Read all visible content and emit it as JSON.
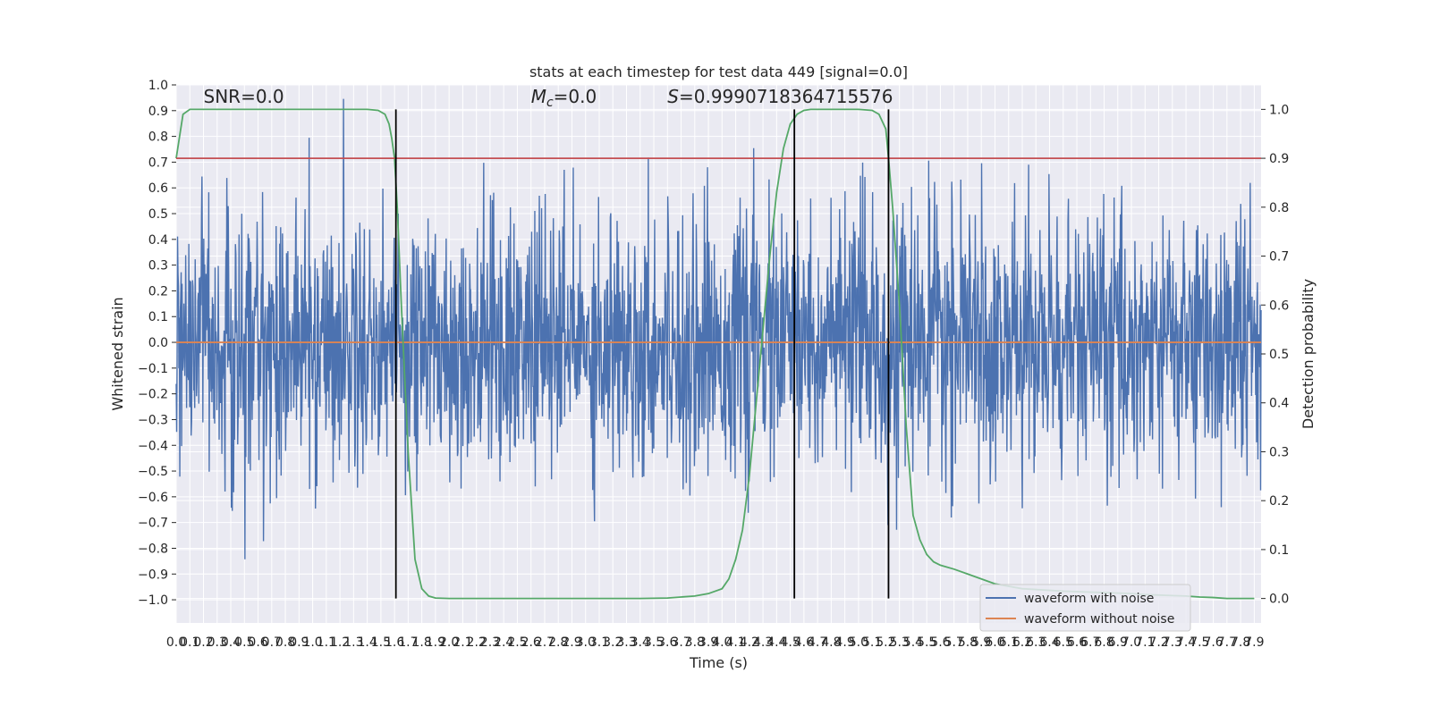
{
  "chart_data": {
    "type": "line",
    "title": "stats at each timestep for test data 449 [signal=0.0]",
    "xlabel": "Time (s)",
    "ylabel": "Whitened strain",
    "y2label": "Detection probability",
    "xlim": [
      0.0,
      7.95
    ],
    "ylim": [
      -1.09,
      1.0
    ],
    "y2lim": [
      -0.05,
      1.05
    ],
    "x_ticks": [
      0.0,
      0.1,
      0.2,
      0.3,
      0.4,
      0.5,
      0.6,
      0.7,
      0.8,
      0.9,
      1.0,
      1.1,
      1.2,
      1.3,
      1.4,
      1.5,
      1.6,
      1.7,
      1.8,
      1.9,
      2.0,
      2.1,
      2.2,
      2.3,
      2.4,
      2.5,
      2.6,
      2.7,
      2.8,
      2.9,
      3.0,
      3.1,
      3.2,
      3.3,
      3.4,
      3.5,
      3.6,
      3.7,
      3.8,
      3.9,
      4.0,
      4.1,
      4.2,
      4.3,
      4.4,
      4.5,
      4.6,
      4.7,
      4.8,
      4.9,
      5.0,
      5.1,
      5.2,
      5.3,
      5.4,
      5.5,
      5.6,
      5.7,
      5.8,
      5.9,
      6.0,
      6.1,
      6.2,
      6.3,
      6.4,
      6.5,
      6.6,
      6.7,
      6.8,
      6.9,
      7.0,
      7.1,
      7.2,
      7.3,
      7.4,
      7.5,
      7.6,
      7.7,
      7.8,
      7.9
    ],
    "x_tick_labels": [
      "0.0",
      "0.1",
      "0.2",
      "0.3",
      "0.4",
      "0.5",
      "0.6",
      "0.7",
      "0.8",
      "0.9",
      "1.0",
      "1.1",
      "1.2",
      "1.3",
      "1.4",
      "1.5",
      "1.6",
      "1.7",
      "1.8",
      "1.9",
      "2.0",
      "2.1",
      "2.2",
      "2.3",
      "2.4",
      "2.5",
      "2.6",
      "2.7",
      "2.8",
      "2.9",
      "3.0",
      "3.1",
      "3.2",
      "3.3",
      "3.4",
      "3.5",
      "3.6",
      "3.7",
      "3.8",
      "3.9",
      "4.0",
      "4.1",
      "4.2",
      "4.3",
      "4.4",
      "4.5",
      "4.6",
      "4.7",
      "4.8",
      "4.9",
      "5.0",
      "5.1",
      "5.2",
      "5.3",
      "5.4",
      "5.5",
      "5.6",
      "5.7",
      "5.8",
      "5.9",
      "6.0",
      "6.1",
      "6.2",
      "6.3",
      "6.4",
      "6.5",
      "6.6",
      "6.7",
      "6.8",
      "6.9",
      "7.0",
      "7.1",
      "7.2",
      "7.3",
      "7.4",
      "7.5",
      "7.6",
      "7.7",
      "7.8",
      "7.9"
    ],
    "y_ticks": [
      -1.0,
      -0.9,
      -0.8,
      -0.7,
      -0.6,
      -0.5,
      -0.4,
      -0.3,
      -0.2,
      -0.1,
      0.0,
      0.1,
      0.2,
      0.3,
      0.4,
      0.5,
      0.6,
      0.7,
      0.8,
      0.9,
      1.0
    ],
    "y_tick_labels": [
      "−1.0",
      "−0.9",
      "−0.8",
      "−0.7",
      "−0.6",
      "−0.5",
      "−0.4",
      "−0.3",
      "−0.2",
      "−0.1",
      "0.0",
      "0.1",
      "0.2",
      "0.3",
      "0.4",
      "0.5",
      "0.6",
      "0.7",
      "0.8",
      "0.9",
      "1.0"
    ],
    "y2_ticks": [
      0.0,
      0.1,
      0.2,
      0.3,
      0.4,
      0.5,
      0.6,
      0.7,
      0.8,
      0.9,
      1.0
    ],
    "y2_tick_labels": [
      "0.0",
      "0.1",
      "0.2",
      "0.3",
      "0.4",
      "0.5",
      "0.6",
      "0.7",
      "0.8",
      "0.9",
      "1.0"
    ],
    "grid": true,
    "legend_position": "lower-right",
    "series": [
      {
        "name": "waveform with noise",
        "axis": "left",
        "color": "#4c72b0",
        "kind": "noise",
        "std": 0.25,
        "sample_count": 2400
      },
      {
        "name": "waveform without noise",
        "axis": "left",
        "color": "#dd8452",
        "x": [
          0.0,
          7.95
        ],
        "y": [
          0.0,
          0.0
        ]
      },
      {
        "name": "",
        "axis": "right",
        "color": "#55a868",
        "x": [
          0.0,
          0.05,
          0.1,
          0.2,
          0.5,
          1.0,
          1.4,
          1.48,
          1.53,
          1.56,
          1.58,
          1.6,
          1.62,
          1.65,
          1.7,
          1.75,
          1.8,
          1.85,
          1.9,
          2.0,
          2.5,
          3.0,
          3.4,
          3.6,
          3.8,
          3.9,
          4.0,
          4.05,
          4.1,
          4.15,
          4.2,
          4.25,
          4.3,
          4.35,
          4.4,
          4.45,
          4.5,
          4.55,
          4.6,
          4.65,
          4.7,
          4.8,
          4.9,
          5.0,
          5.1,
          5.15,
          5.2,
          5.22,
          5.25,
          5.3,
          5.35,
          5.4,
          5.45,
          5.5,
          5.55,
          5.6,
          5.7,
          5.8,
          5.9,
          6.0,
          6.2,
          6.5,
          6.8,
          7.0,
          7.1,
          7.2,
          7.3,
          7.4,
          7.5,
          7.6,
          7.7,
          7.8,
          7.9
        ],
        "y": [
          0.9,
          0.99,
          1.0,
          1.0,
          1.0,
          1.0,
          1.0,
          0.998,
          0.99,
          0.97,
          0.94,
          0.9,
          0.8,
          0.6,
          0.3,
          0.08,
          0.02,
          0.005,
          0.001,
          0.0,
          0.0,
          0.0,
          0.0,
          0.001,
          0.005,
          0.01,
          0.02,
          0.04,
          0.08,
          0.14,
          0.25,
          0.4,
          0.55,
          0.7,
          0.83,
          0.92,
          0.97,
          0.99,
          0.998,
          1.0,
          1.0,
          1.0,
          1.0,
          1.0,
          0.998,
          0.99,
          0.96,
          0.9,
          0.8,
          0.6,
          0.35,
          0.17,
          0.12,
          0.09,
          0.075,
          0.068,
          0.06,
          0.05,
          0.04,
          0.03,
          0.02,
          0.015,
          0.012,
          0.01,
          0.008,
          0.007,
          0.006,
          0.005,
          0.003,
          0.002,
          0.0,
          0.0,
          0.0
        ]
      },
      {
        "name": "",
        "axis": "right",
        "color": "#c44e52",
        "x": [
          0.0,
          7.95
        ],
        "y": [
          0.9,
          0.9
        ]
      }
    ],
    "vertical_lines": [
      1.61,
      4.53,
      5.22
    ],
    "vertical_lines_color": "#000000",
    "annotations": [
      {
        "text": "SNR=0.0",
        "x": 0.2,
        "y": 0.93
      },
      {
        "text": "=0.0",
        "math": "M",
        "sub": "c",
        "x": 2.6,
        "y": 0.93
      },
      {
        "text": "=0.9990718364715576",
        "math": "S",
        "x": 3.6,
        "y": 0.93
      }
    ]
  }
}
